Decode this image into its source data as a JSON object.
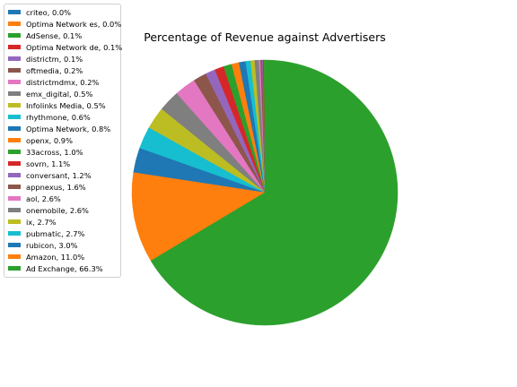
{
  "chart_data": {
    "type": "pie",
    "title": "Percentage of Revenue against Advertisers",
    "legend_position": "upper-left",
    "start_angle_deg": 90,
    "direction": "counterclockwise",
    "slices": [
      {
        "label": "criteo, 0.0%",
        "value": 0.02,
        "color": "#1f77b4"
      },
      {
        "label": "Optima Network es, 0.0%",
        "value": 0.03,
        "color": "#ff7f0e"
      },
      {
        "label": "AdSense, 0.1%",
        "value": 0.1,
        "color": "#2ca02c"
      },
      {
        "label": "Optima Network de, 0.1%",
        "value": 0.1,
        "color": "#d62728"
      },
      {
        "label": "districtm, 0.1%",
        "value": 0.1,
        "color": "#9467bd"
      },
      {
        "label": "oftmedia, 0.2%",
        "value": 0.2,
        "color": "#8c564b"
      },
      {
        "label": "districtmdmx, 0.2%",
        "value": 0.2,
        "color": "#e377c2"
      },
      {
        "label": "emx_digital, 0.5%",
        "value": 0.5,
        "color": "#7f7f7f"
      },
      {
        "label": "Infolinks Media, 0.5%",
        "value": 0.5,
        "color": "#bcbd22"
      },
      {
        "label": "rhythmone, 0.6%",
        "value": 0.6,
        "color": "#17becf"
      },
      {
        "label": "Optima Network, 0.8%",
        "value": 0.8,
        "color": "#1f77b4"
      },
      {
        "label": "openx, 0.9%",
        "value": 0.9,
        "color": "#ff7f0e"
      },
      {
        "label": "33across, 1.0%",
        "value": 1.0,
        "color": "#2ca02c"
      },
      {
        "label": "sovrn, 1.1%",
        "value": 1.1,
        "color": "#d62728"
      },
      {
        "label": "conversant, 1.2%",
        "value": 1.2,
        "color": "#9467bd"
      },
      {
        "label": "appnexus, 1.6%",
        "value": 1.6,
        "color": "#8c564b"
      },
      {
        "label": "aol, 2.6%",
        "value": 2.6,
        "color": "#e377c2"
      },
      {
        "label": "onemobile, 2.6%",
        "value": 2.6,
        "color": "#7f7f7f"
      },
      {
        "label": "ix, 2.7%",
        "value": 2.7,
        "color": "#bcbd22"
      },
      {
        "label": "pubmatic, 2.7%",
        "value": 2.7,
        "color": "#17becf"
      },
      {
        "label": "rubicon, 3.0%",
        "value": 3.0,
        "color": "#1f77b4"
      },
      {
        "label": "Amazon, 11.0%",
        "value": 11.0,
        "color": "#ff7f0e"
      },
      {
        "label": "Ad Exchange, 66.3%",
        "value": 66.3,
        "color": "#2ca02c"
      }
    ]
  }
}
